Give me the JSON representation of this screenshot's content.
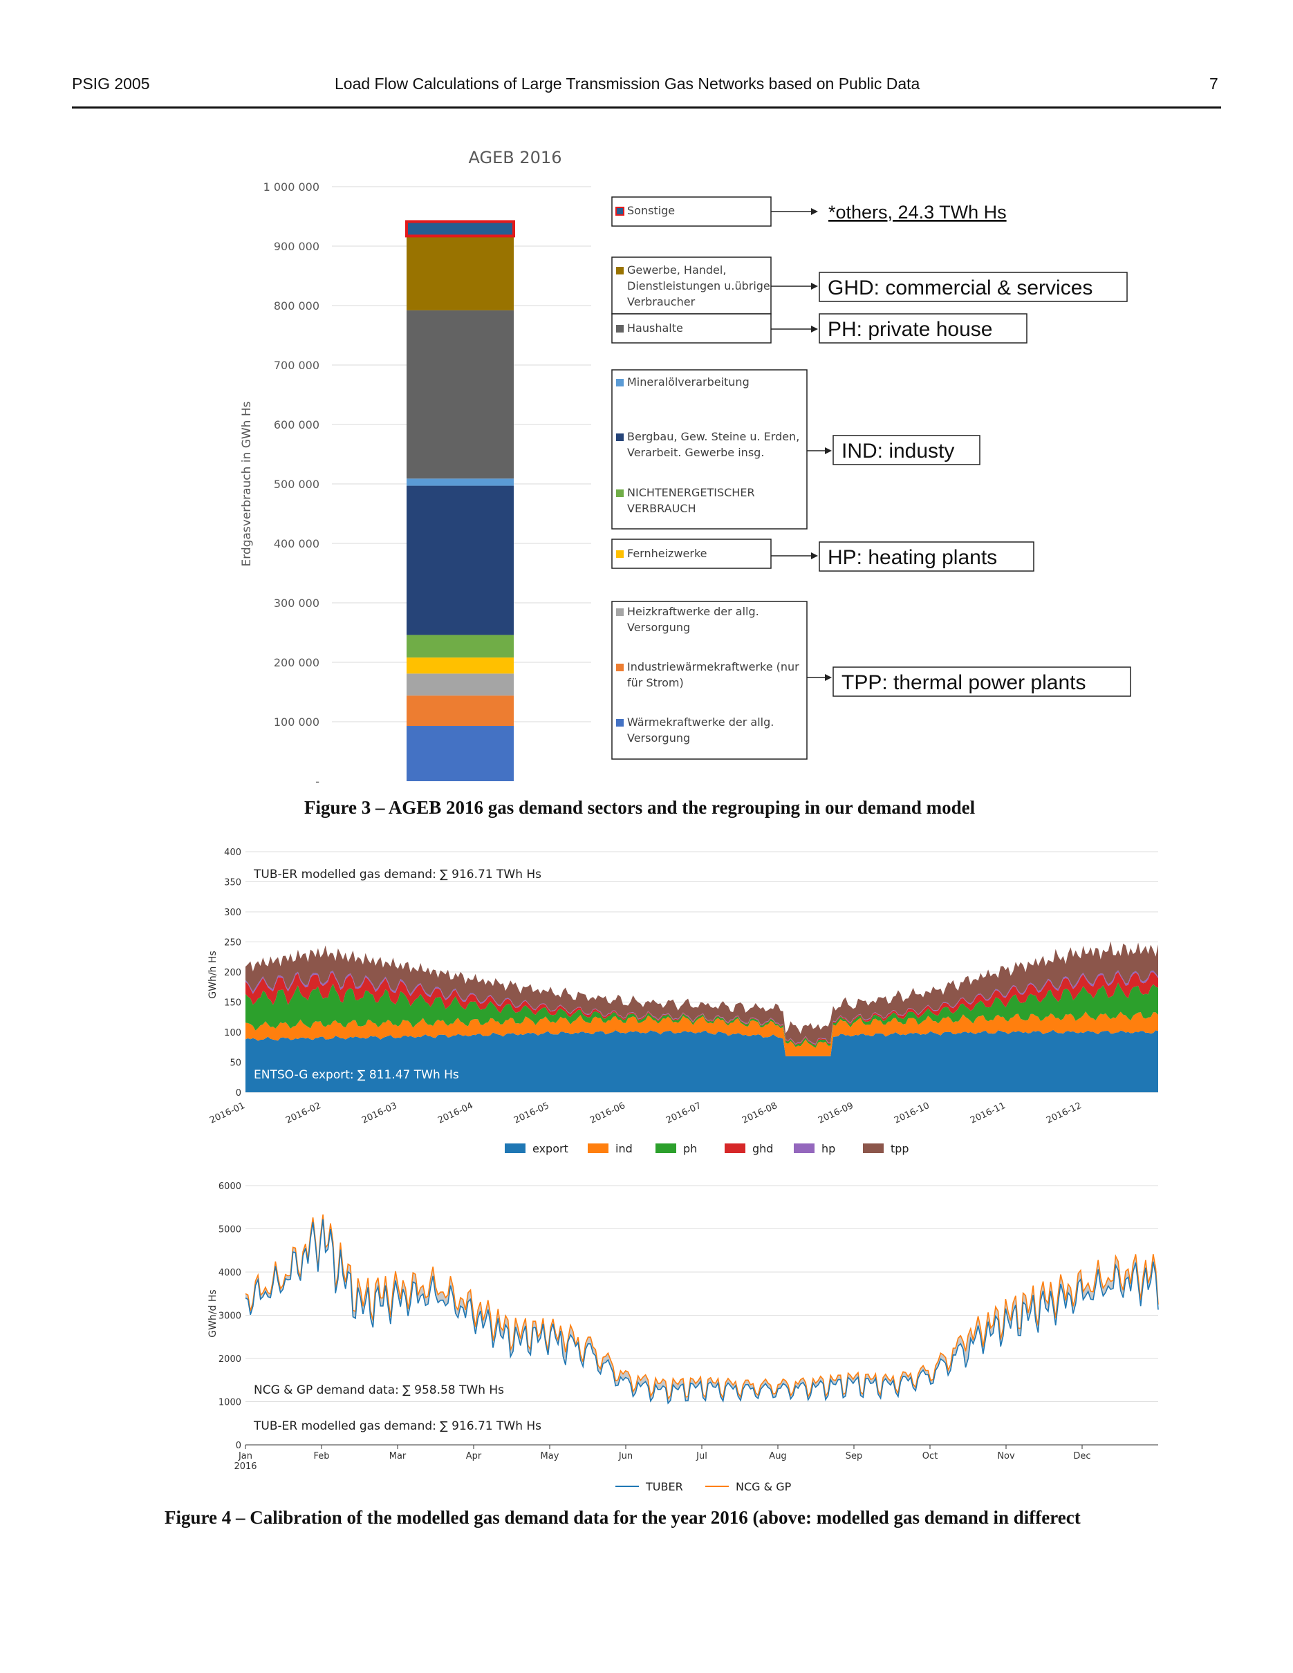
{
  "header": {
    "left": "PSIG 2005",
    "center": "Load Flow Calculations of Large Transmission Gas Networks based on Public Data",
    "page": "7"
  },
  "fig3_caption": "Figure 3 – AGEB 2016 gas demand sectors and the regrouping in our demand model",
  "fig4_caption": "Figure 4 – Calibration of the modelled gas demand data for the year 2016 (above: modelled gas demand in differect",
  "chart_data": [
    {
      "type": "bar",
      "title": "AGEB 2016",
      "ylabel": "Erdgasverbrauch in GWh Hs",
      "ylim": [
        0,
        1000000
      ],
      "yticks": [
        "-",
        "100 000",
        "200 000",
        "300 000",
        "400 000",
        "500 000",
        "600 000",
        "700 000",
        "800 000",
        "900 000",
        "1 000 000"
      ],
      "segments": [
        {
          "name": "Wärmekraftwerke der allg. Versorgung",
          "value": 93000,
          "color": "#4472c4"
        },
        {
          "name": "Industriewärmekraftwerke (nur für Strom)",
          "value": 51000,
          "color": "#ed7d31"
        },
        {
          "name": "Heizkraftwerke der allg. Versorgung",
          "value": 37000,
          "color": "#a5a5a5"
        },
        {
          "name": "Fernheizwerke",
          "value": 27000,
          "color": "#ffc000"
        },
        {
          "name": "NICHTENERGETISCHER VERBRAUCH",
          "value": 38000,
          "color": "#70ad47"
        },
        {
          "name": "Bergbau, Gew. Steine u. Erden, Verarbeit. Gewerbe insg.",
          "value": 251000,
          "color": "#264478"
        },
        {
          "name": "Mineralölverarbeitung",
          "value": 12000,
          "color": "#5b9bd5"
        },
        {
          "name": "Haushalte",
          "value": 283000,
          "color": "#636363"
        },
        {
          "name": "Gewerbe, Handel, Dienstleistungen u.übrige Verbraucher",
          "value": 125000,
          "color": "#997300"
        },
        {
          "name": "Sonstige",
          "value": 24300,
          "color": "#255e91"
        }
      ],
      "groups": [
        {
          "label": "*others, 24.3 TWh Hs",
          "members": [
            "Sonstige"
          ]
        },
        {
          "label": "GHD: commercial & services",
          "members": [
            "Gewerbe, Handel, Dienstleistungen u.übrige Verbraucher"
          ]
        },
        {
          "label": "PH: private house",
          "members": [
            "Haushalte"
          ]
        },
        {
          "label": "IND: industy",
          "members": [
            "Mineralölverarbeitung",
            "Bergbau, Gew. Steine u. Erden, Verarbeit. Gewerbe insg.",
            "NICHTENERGETISCHER VERBRAUCH"
          ]
        },
        {
          "label": "HP: heating plants",
          "members": [
            "Fernheizwerke"
          ]
        },
        {
          "label": "TPP: thermal power plants",
          "members": [
            "Heizkraftwerke der allg. Versorgung",
            "Industriewärmekraftwerke (nur für Strom)",
            "Wärmekraftwerke der allg. Versorgung"
          ]
        }
      ]
    },
    {
      "type": "area",
      "ylabel": "GWh/h Hs",
      "ylim": [
        0,
        400
      ],
      "yticks": [
        "0",
        "50",
        "100",
        "150",
        "200",
        "250",
        "300",
        "350",
        "400"
      ],
      "xticks": [
        "2016-01",
        "2016-02",
        "2016-03",
        "2016-04",
        "2016-05",
        "2016-06",
        "2016-07",
        "2016-08",
        "2016-09",
        "2016-10",
        "2016-11",
        "2016-12"
      ],
      "x": [
        "2016-01",
        "2016-02",
        "2016-03",
        "2016-04",
        "2016-05",
        "2016-06",
        "2016-07",
        "2016-08",
        "2016-09",
        "2016-10",
        "2016-11",
        "2016-12",
        "2016-12-31"
      ],
      "series": [
        {
          "name": "export",
          "color": "#1f77b4",
          "values": [
            88,
            90,
            92,
            95,
            98,
            100,
            100,
            92,
            95,
            98,
            100,
            100,
            100
          ]
        },
        {
          "name": "ind",
          "color": "#ff7f0e",
          "values": [
            22,
            24,
            23,
            22,
            22,
            21,
            20,
            20,
            21,
            22,
            24,
            26,
            28
          ]
        },
        {
          "name": "ph",
          "color": "#2ca02c",
          "values": [
            45,
            52,
            42,
            28,
            14,
            5,
            3,
            3,
            4,
            12,
            28,
            40,
            42
          ]
        },
        {
          "name": "ghd",
          "color": "#d62728",
          "values": [
            20,
            22,
            18,
            11,
            6,
            2,
            1,
            1,
            2,
            6,
            14,
            19,
            21
          ]
        },
        {
          "name": "hp",
          "color": "#9467bd",
          "values": [
            3,
            3,
            3,
            2,
            1,
            1,
            1,
            1,
            1,
            1,
            2,
            3,
            3
          ]
        },
        {
          "name": "tpp",
          "color": "#8c564b",
          "values": [
            32,
            42,
            34,
            30,
            26,
            22,
            20,
            22,
            24,
            28,
            36,
            45,
            44
          ]
        }
      ],
      "annotations": [
        "TUB-ER modelled gas demand: ∑ 916.71 TWh Hs",
        "ENTSO-G export: ∑ 811.47 TWh Hs"
      ]
    },
    {
      "type": "line",
      "ylabel": "GWh/d Hs",
      "ylim": [
        0,
        6000
      ],
      "yticks": [
        "0",
        "1000",
        "2000",
        "3000",
        "4000",
        "5000",
        "6000"
      ],
      "xticks": [
        "Jan\n2016",
        "Feb",
        "Mar",
        "Apr",
        "May",
        "Jun",
        "Jul",
        "Aug",
        "Sep",
        "Oct",
        "Nov",
        "Dec"
      ],
      "x": [
        "2016-01-01",
        "2016-01-15",
        "2016-02-01",
        "2016-02-15",
        "2016-03-01",
        "2016-03-15",
        "2016-04-01",
        "2016-04-15",
        "2016-05-01",
        "2016-05-15",
        "2016-06-01",
        "2016-06-15",
        "2016-07-01",
        "2016-07-15",
        "2016-08-01",
        "2016-08-15",
        "2016-09-01",
        "2016-09-15",
        "2016-10-01",
        "2016-10-15",
        "2016-11-01",
        "2016-11-15",
        "2016-12-01",
        "2016-12-15",
        "2016-12-31"
      ],
      "series": [
        {
          "name": "TUBER",
          "color": "#1f77b4",
          "values": [
            3400,
            3900,
            5000,
            3300,
            3500,
            3600,
            3100,
            2500,
            2600,
            2300,
            1500,
            1300,
            1400,
            1350,
            1350,
            1400,
            1500,
            1450,
            1700,
            2400,
            2900,
            3300,
            3600,
            3900,
            3900
          ]
        },
        {
          "name": "NCG & GP",
          "color": "#ff7f0e",
          "values": [
            3500,
            4000,
            5100,
            3500,
            3700,
            3800,
            3300,
            2700,
            2700,
            2450,
            1650,
            1450,
            1500,
            1450,
            1450,
            1500,
            1600,
            1550,
            1800,
            2600,
            3100,
            3500,
            3800,
            4100,
            4050
          ]
        }
      ],
      "annotations": [
        "NCG & GP demand data: ∑ 958.58 TWh Hs",
        "TUB-ER modelled gas demand: ∑ 916.71 TWh Hs"
      ]
    }
  ]
}
